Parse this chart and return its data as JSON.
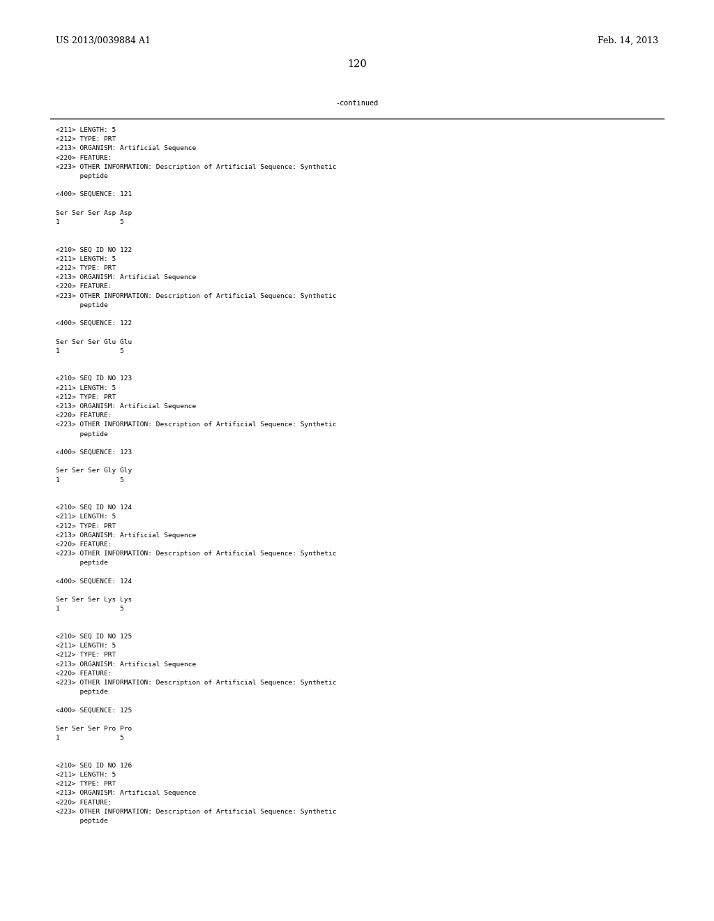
{
  "background_color": "#ffffff",
  "top_left_text": "US 2013/0039884 A1",
  "top_right_text": "Feb. 14, 2013",
  "page_number": "120",
  "continued_label": "-continued",
  "monospace_font_size": 6.8,
  "header_font_size": 9.0,
  "page_num_font_size": 10.5,
  "content_lines": [
    "<211> LENGTH: 5",
    "<212> TYPE: PRT",
    "<213> ORGANISM: Artificial Sequence",
    "<220> FEATURE:",
    "<223> OTHER INFORMATION: Description of Artificial Sequence: Synthetic",
    "      peptide",
    "",
    "<400> SEQUENCE: 121",
    "",
    "Ser Ser Ser Asp Asp",
    "1               5",
    "",
    "",
    "<210> SEQ ID NO 122",
    "<211> LENGTH: 5",
    "<212> TYPE: PRT",
    "<213> ORGANISM: Artificial Sequence",
    "<220> FEATURE:",
    "<223> OTHER INFORMATION: Description of Artificial Sequence: Synthetic",
    "      peptide",
    "",
    "<400> SEQUENCE: 122",
    "",
    "Ser Ser Ser Glu Glu",
    "1               5",
    "",
    "",
    "<210> SEQ ID NO 123",
    "<211> LENGTH: 5",
    "<212> TYPE: PRT",
    "<213> ORGANISM: Artificial Sequence",
    "<220> FEATURE:",
    "<223> OTHER INFORMATION: Description of Artificial Sequence: Synthetic",
    "      peptide",
    "",
    "<400> SEQUENCE: 123",
    "",
    "Ser Ser Ser Gly Gly",
    "1               5",
    "",
    "",
    "<210> SEQ ID NO 124",
    "<211> LENGTH: 5",
    "<212> TYPE: PRT",
    "<213> ORGANISM: Artificial Sequence",
    "<220> FEATURE:",
    "<223> OTHER INFORMATION: Description of Artificial Sequence: Synthetic",
    "      peptide",
    "",
    "<400> SEQUENCE: 124",
    "",
    "Ser Ser Ser Lys Lys",
    "1               5",
    "",
    "",
    "<210> SEQ ID NO 125",
    "<211> LENGTH: 5",
    "<212> TYPE: PRT",
    "<213> ORGANISM: Artificial Sequence",
    "<220> FEATURE:",
    "<223> OTHER INFORMATION: Description of Artificial Sequence: Synthetic",
    "      peptide",
    "",
    "<400> SEQUENCE: 125",
    "",
    "Ser Ser Ser Pro Pro",
    "1               5",
    "",
    "",
    "<210> SEQ ID NO 126",
    "<211> LENGTH: 5",
    "<212> TYPE: PRT",
    "<213> ORGANISM: Artificial Sequence",
    "<220> FEATURE:",
    "<223> OTHER INFORMATION: Description of Artificial Sequence: Synthetic",
    "      peptide"
  ],
  "text_color": "#000000"
}
